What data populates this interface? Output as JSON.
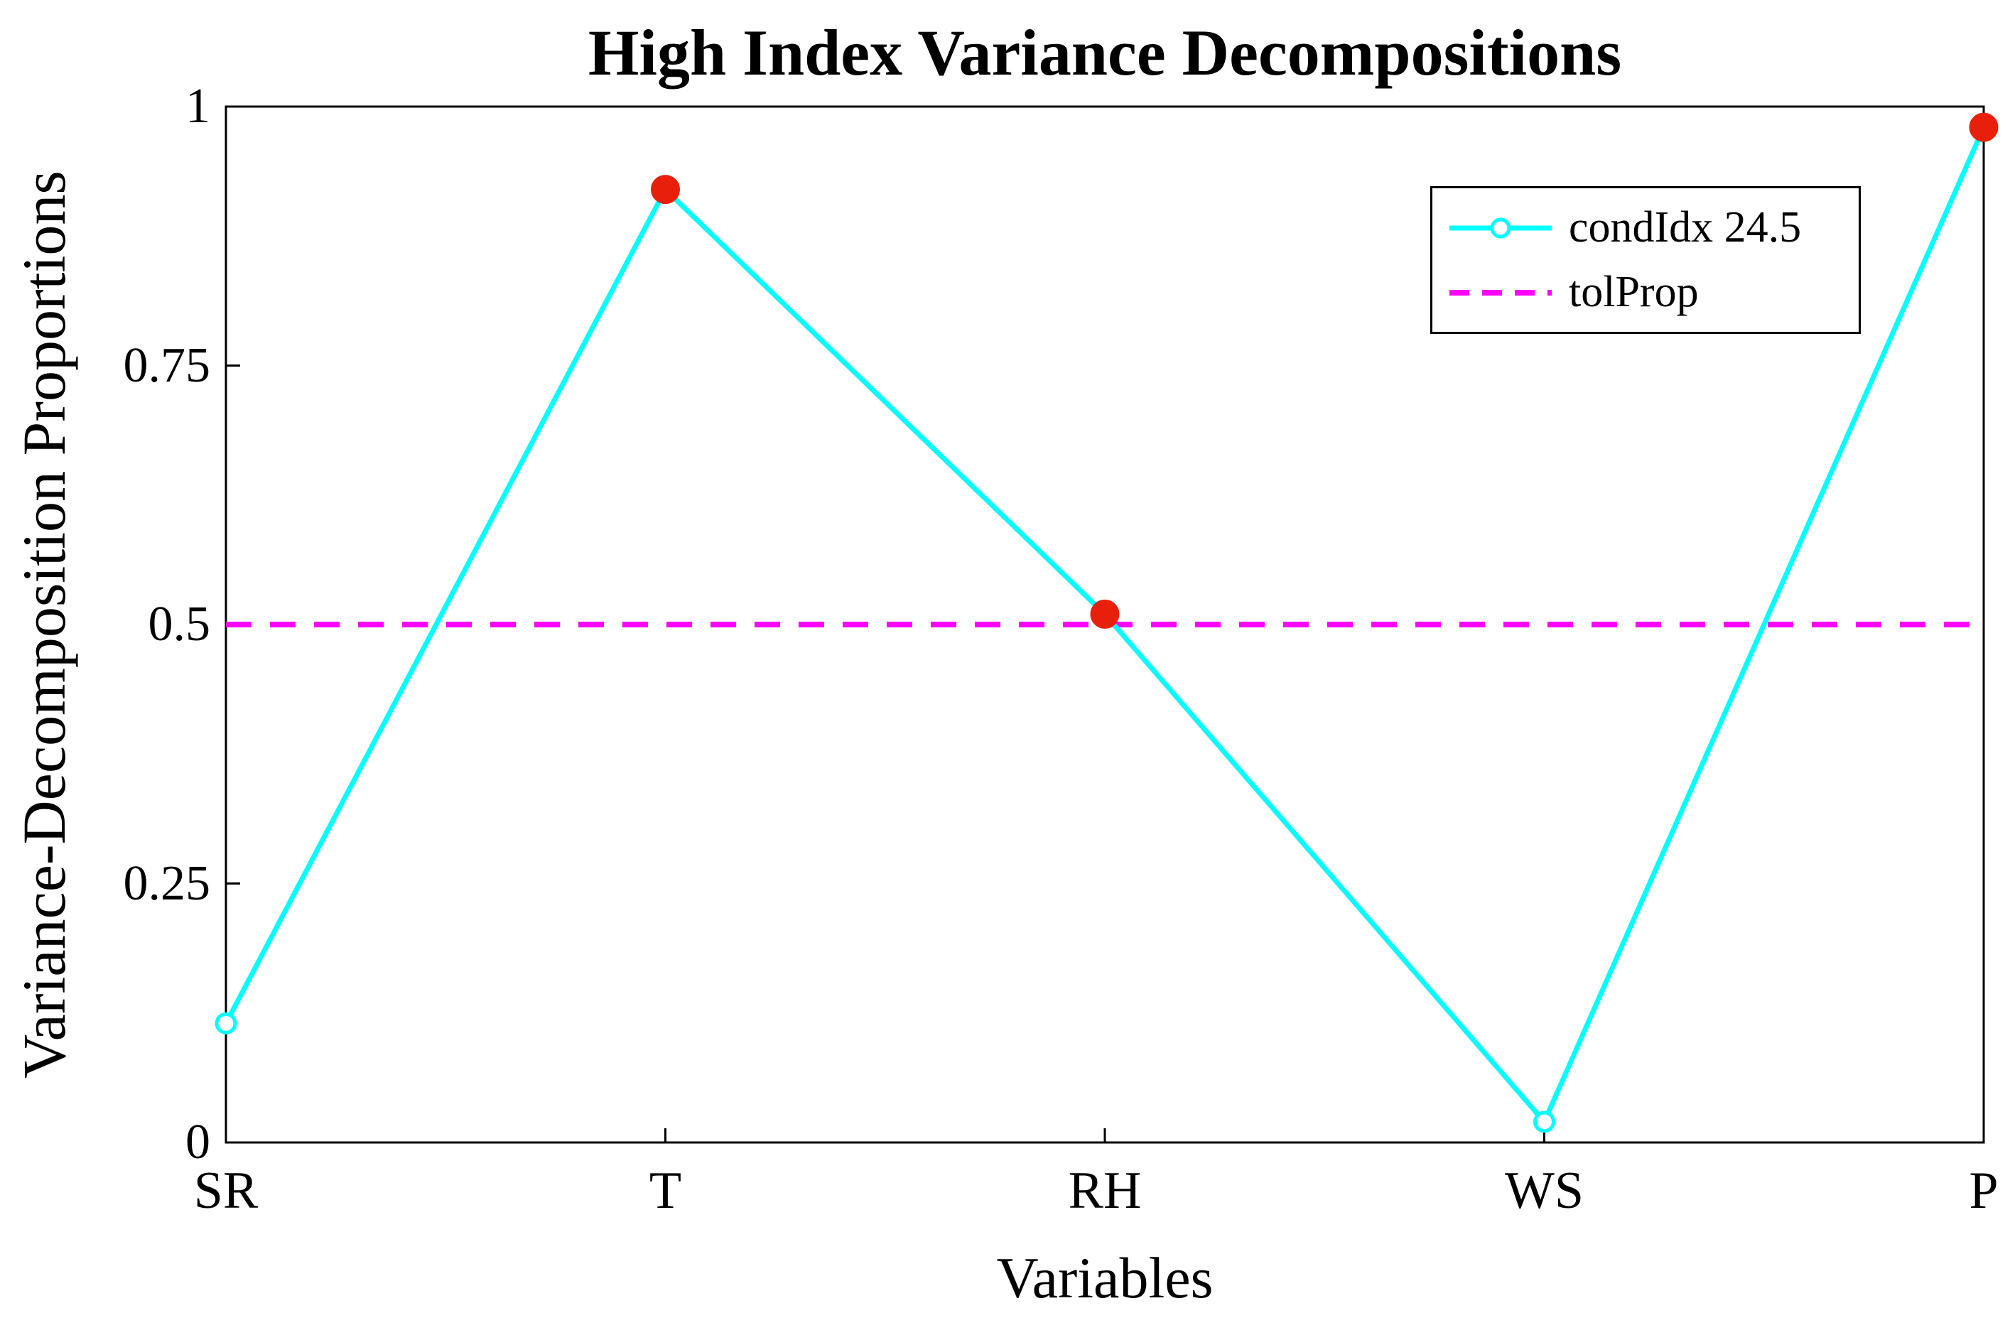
{
  "figure": {
    "background": "#ffffff"
  },
  "chart_data": {
    "type": "line",
    "title": "High Index Variance Decompositions",
    "xlabel": "Variables",
    "ylabel": "Variance-Decomposition Proportions",
    "categories": [
      "SR",
      "T",
      "RH",
      "WS",
      "P"
    ],
    "ylim": [
      0,
      1
    ],
    "yticks": [
      0,
      0.25,
      0.5,
      0.75,
      1
    ],
    "ytick_labels": [
      "0",
      "0.25",
      "0.5",
      "0.75",
      "1"
    ],
    "grid": false,
    "legend_position": "top-right",
    "axis_color": "#000000",
    "high_marker_color": "#e8200b",
    "series": [
      {
        "name": "condIdx 24.5",
        "type": "line",
        "color": "#00ffff",
        "marker": "circle-open",
        "values": [
          0.115,
          0.92,
          0.51,
          0.02,
          0.98
        ]
      },
      {
        "name": "tolProp",
        "type": "hline",
        "color": "#ff00ff",
        "style": "dashed",
        "value": 0.5
      }
    ]
  }
}
